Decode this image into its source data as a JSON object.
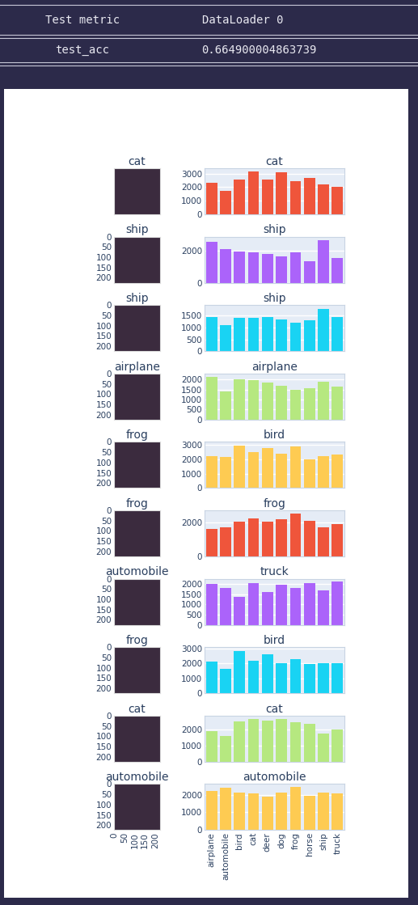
{
  "header": {
    "columns": [
      "Test metric",
      "DataLoader 0"
    ],
    "rows": [
      [
        "test_acc",
        0.664900004863739
      ]
    ]
  },
  "chart_data": [
    {
      "type": "image",
      "title": "cat",
      "xlim": [
        0,
        224
      ],
      "ylim": [
        224,
        0
      ],
      "tick_labels": false
    },
    {
      "type": "bar",
      "title": "cat",
      "categories": [
        "airplane",
        "automobile",
        "bird",
        "cat",
        "deer",
        "dog",
        "frog",
        "horse",
        "ship",
        "truck"
      ],
      "values": [
        2300,
        1750,
        2550,
        3150,
        2550,
        3100,
        2450,
        2700,
        2200,
        2000
      ],
      "color": "#EF553B",
      "ylim": [
        0,
        3400
      ],
      "yticks": [
        0,
        1000,
        2000,
        3000
      ],
      "grid": true,
      "tick_labels": "y"
    },
    {
      "type": "image",
      "title": "ship",
      "xlim": [
        0,
        224
      ],
      "ylim": [
        224,
        0
      ],
      "yticks": [
        0,
        50,
        100,
        150,
        200
      ],
      "tick_labels": "y"
    },
    {
      "type": "bar",
      "title": "ship",
      "categories": [
        "airplane",
        "automobile",
        "bird",
        "cat",
        "deer",
        "dog",
        "frog",
        "horse",
        "ship",
        "truck"
      ],
      "values": [
        2550,
        2100,
        1950,
        1900,
        1800,
        1650,
        1900,
        1350,
        2700,
        1550
      ],
      "color": "#AB63FA",
      "ylim": [
        0,
        2900
      ],
      "yticks": [
        0,
        2000
      ],
      "grid": true,
      "tick_labels": "y"
    },
    {
      "type": "image",
      "title": "ship",
      "xlim": [
        0,
        224
      ],
      "ylim": [
        224,
        0
      ],
      "yticks": [
        0,
        50,
        100,
        150,
        200
      ],
      "tick_labels": "y"
    },
    {
      "type": "bar",
      "title": "ship",
      "categories": [
        "airplane",
        "automobile",
        "bird",
        "cat",
        "deer",
        "dog",
        "frog",
        "horse",
        "ship",
        "truck"
      ],
      "values": [
        1450,
        1100,
        1400,
        1400,
        1450,
        1350,
        1200,
        1300,
        1800,
        1450
      ],
      "color": "#19D3F3",
      "ylim": [
        0,
        1950
      ],
      "yticks": [
        0,
        500,
        1000,
        1500
      ],
      "grid": true,
      "tick_labels": "y"
    },
    {
      "type": "image",
      "title": "airplane",
      "xlim": [
        0,
        224
      ],
      "ylim": [
        224,
        0
      ],
      "yticks": [
        0,
        50,
        100,
        150,
        200
      ],
      "tick_labels": "y"
    },
    {
      "type": "bar",
      "title": "airplane",
      "categories": [
        "airplane",
        "automobile",
        "bird",
        "cat",
        "deer",
        "dog",
        "frog",
        "horse",
        "ship",
        "truck"
      ],
      "values": [
        2150,
        1400,
        2000,
        1950,
        1850,
        1700,
        1500,
        1550,
        1900,
        1650
      ],
      "color": "#B6E880",
      "ylim": [
        0,
        2300
      ],
      "yticks": [
        0,
        500,
        1000,
        1500,
        2000
      ],
      "grid": true,
      "tick_labels": "y"
    },
    {
      "type": "image",
      "title": "frog",
      "xlim": [
        0,
        224
      ],
      "ylim": [
        224,
        0
      ],
      "yticks": [
        0,
        50,
        100,
        150,
        200
      ],
      "tick_labels": "y"
    },
    {
      "type": "bar",
      "title": "bird",
      "categories": [
        "airplane",
        "automobile",
        "bird",
        "cat",
        "deer",
        "dog",
        "frog",
        "horse",
        "ship",
        "truck"
      ],
      "values": [
        2200,
        2150,
        2950,
        2500,
        2750,
        2400,
        2900,
        2000,
        2200,
        2300
      ],
      "color": "#FECB52",
      "ylim": [
        0,
        3200
      ],
      "yticks": [
        0,
        1000,
        2000,
        3000
      ],
      "grid": true,
      "tick_labels": "y"
    },
    {
      "type": "image",
      "title": "frog",
      "xlim": [
        0,
        224
      ],
      "ylim": [
        224,
        0
      ],
      "yticks": [
        0,
        50,
        100,
        150,
        200
      ],
      "tick_labels": "y"
    },
    {
      "type": "bar",
      "title": "frog",
      "categories": [
        "airplane",
        "automobile",
        "bird",
        "cat",
        "deer",
        "dog",
        "frog",
        "horse",
        "ship",
        "truck"
      ],
      "values": [
        1600,
        1700,
        2050,
        2250,
        2050,
        2200,
        2500,
        2100,
        1700,
        1900
      ],
      "color": "#EF553B",
      "ylim": [
        0,
        2700
      ],
      "yticks": [
        0,
        2000
      ],
      "grid": true,
      "tick_labels": "y"
    },
    {
      "type": "image",
      "title": "automobile",
      "xlim": [
        0,
        224
      ],
      "ylim": [
        224,
        0
      ],
      "yticks": [
        0,
        50,
        100,
        150,
        200
      ],
      "tick_labels": "y"
    },
    {
      "type": "bar",
      "title": "truck",
      "categories": [
        "airplane",
        "automobile",
        "bird",
        "cat",
        "deer",
        "dog",
        "frog",
        "horse",
        "ship",
        "truck"
      ],
      "values": [
        2000,
        1800,
        1350,
        2050,
        1600,
        1950,
        1800,
        2050,
        1700,
        2100
      ],
      "color": "#AB63FA",
      "ylim": [
        0,
        2250
      ],
      "yticks": [
        0,
        500,
        1000,
        1500,
        2000
      ],
      "grid": true,
      "tick_labels": "y"
    },
    {
      "type": "image",
      "title": "frog",
      "xlim": [
        0,
        224
      ],
      "ylim": [
        224,
        0
      ],
      "yticks": [
        0,
        50,
        100,
        150,
        200
      ],
      "tick_labels": "y"
    },
    {
      "type": "bar",
      "title": "bird",
      "categories": [
        "airplane",
        "automobile",
        "bird",
        "cat",
        "deer",
        "dog",
        "frog",
        "horse",
        "ship",
        "truck"
      ],
      "values": [
        2150,
        1650,
        2850,
        2200,
        2600,
        2050,
        2300,
        1950,
        2050,
        2000
      ],
      "color": "#19D3F3",
      "ylim": [
        0,
        3100
      ],
      "yticks": [
        0,
        1000,
        2000,
        3000
      ],
      "grid": true,
      "tick_labels": "y"
    },
    {
      "type": "image",
      "title": "cat",
      "xlim": [
        0,
        224
      ],
      "ylim": [
        224,
        0
      ],
      "yticks": [
        0,
        50,
        100,
        150,
        200
      ],
      "tick_labels": "y"
    },
    {
      "type": "bar",
      "title": "cat",
      "categories": [
        "airplane",
        "automobile",
        "bird",
        "cat",
        "deer",
        "dog",
        "frog",
        "horse",
        "ship",
        "truck"
      ],
      "values": [
        1900,
        1600,
        2500,
        2650,
        2550,
        2650,
        2450,
        2350,
        1750,
        2000
      ],
      "color": "#B6E880",
      "ylim": [
        0,
        2850
      ],
      "yticks": [
        0,
        1000,
        2000
      ],
      "grid": true,
      "tick_labels": "y"
    },
    {
      "type": "image",
      "title": "automobile",
      "xlim": [
        0,
        224
      ],
      "ylim": [
        224,
        0
      ],
      "xticks": [
        0,
        50,
        100,
        150,
        200
      ],
      "yticks": [
        0,
        50,
        100,
        150,
        200
      ]
    },
    {
      "type": "bar",
      "title": "automobile",
      "categories": [
        "airplane",
        "automobile",
        "bird",
        "cat",
        "deer",
        "dog",
        "frog",
        "horse",
        "ship",
        "truck"
      ],
      "values": [
        2200,
        2400,
        2100,
        2050,
        1900,
        2100,
        2450,
        1950,
        2100,
        2050
      ],
      "color": "#FECB52",
      "ylim": [
        0,
        2600
      ],
      "yticks": [
        0,
        1000,
        2000
      ],
      "grid": true
    }
  ]
}
